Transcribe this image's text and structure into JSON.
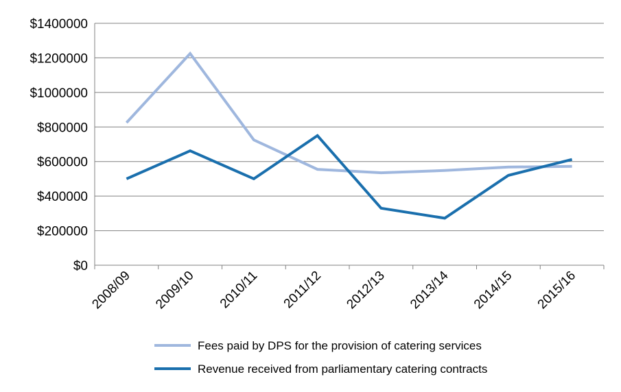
{
  "chart_data": {
    "type": "line",
    "title": "",
    "xlabel": "",
    "ylabel": "",
    "categories": [
      "2008/09",
      "2009/10",
      "2010/11",
      "2011/12",
      "2012/13",
      "2013/14",
      "2014/15",
      "2015/16"
    ],
    "ylim": [
      0,
      1400000
    ],
    "yticks": [
      0,
      200000,
      400000,
      600000,
      800000,
      1000000,
      1200000,
      1400000
    ],
    "ytick_labels": [
      "$0",
      "$200000",
      "$400000",
      "$600000",
      "$800000",
      "$1000000",
      "$1200000",
      "$1400000"
    ],
    "grid": "horizontal",
    "legend_position": "bottom",
    "series": [
      {
        "name": "Fees paid by DPS for the provision of catering services",
        "color": "#9fb7de",
        "values": [
          825000,
          1225000,
          725000,
          555000,
          535000,
          548000,
          568000,
          572000
        ]
      },
      {
        "name": "Revenue received from parliamentary catering contracts",
        "color": "#1a6fad",
        "values": [
          500000,
          662000,
          500000,
          750000,
          330000,
          272000,
          520000,
          612000
        ]
      }
    ]
  }
}
